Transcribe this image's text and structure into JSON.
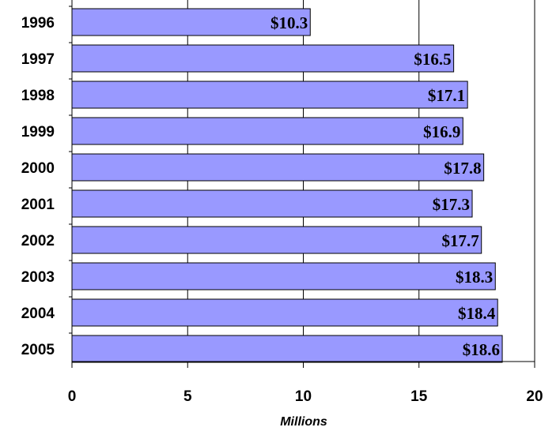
{
  "chart_data": {
    "type": "bar",
    "orientation": "horizontal",
    "categories": [
      "1996",
      "1997",
      "1998",
      "1999",
      "2000",
      "2001",
      "2002",
      "2003",
      "2004",
      "2005"
    ],
    "values": [
      10.3,
      16.5,
      17.1,
      16.9,
      17.8,
      17.3,
      17.7,
      18.3,
      18.4,
      18.6
    ],
    "data_labels": [
      "$10.3",
      "$16.5",
      "$17.1",
      "$16.9",
      "$17.8",
      "$17.3",
      "$17.7",
      "$18.3",
      "$18.4",
      "$18.6"
    ],
    "xlabel": "Millions",
    "xlim": [
      0,
      20
    ],
    "xticks": [
      0,
      5,
      10,
      15,
      20
    ],
    "xtick_labels": [
      "0",
      "5",
      "10",
      "15",
      "20"
    ],
    "grid": "vertical",
    "colors": {
      "bar_fill": "#9999ff",
      "bar_stroke": "#000000",
      "gridline": "#000000"
    }
  }
}
